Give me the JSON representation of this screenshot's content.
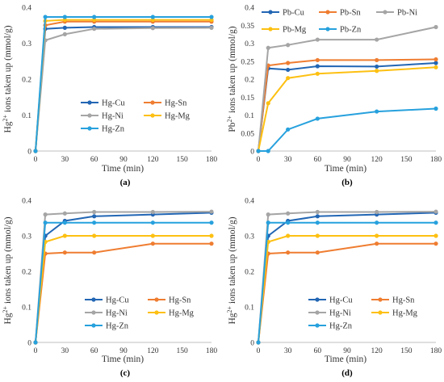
{
  "colors": {
    "Cu": "#2266b4",
    "Sn": "#ef7d31",
    "Ni": "#a5a5a5",
    "Mg": "#fdc012",
    "Zn": "#27a1dd"
  },
  "chart_data": [
    {
      "type": "line",
      "panel_label": "(a)",
      "xlabel": "Time (min)",
      "ylabel": {
        "pre": "Hg",
        "sup": "2+",
        "post": " ions taken up (mmol/g)"
      },
      "x": [
        0,
        10,
        30,
        60,
        120,
        180
      ],
      "x_ticks": [
        0,
        30,
        60,
        90,
        120,
        150,
        180
      ],
      "xlim": [
        0,
        180
      ],
      "ylim": [
        0,
        0.4
      ],
      "y_ticks": [
        "0",
        "0.1",
        "0.2",
        "0.3",
        "0.4"
      ],
      "grid": false,
      "legend": {
        "placement": "center",
        "columns": 2
      },
      "series": [
        {
          "name": "Hg-Cu",
          "key": "Cu",
          "values": [
            0,
            0.34,
            0.343,
            0.345,
            0.345,
            0.345
          ]
        },
        {
          "name": "Hg-Sn",
          "key": "Sn",
          "values": [
            0,
            0.35,
            0.36,
            0.36,
            0.36,
            0.36
          ]
        },
        {
          "name": "Hg-Ni",
          "key": "Ni",
          "values": [
            0,
            0.308,
            0.325,
            0.34,
            0.342,
            0.343
          ]
        },
        {
          "name": "Hg-Mg",
          "key": "Mg",
          "values": [
            0,
            0.362,
            0.365,
            0.365,
            0.365,
            0.365
          ]
        },
        {
          "name": "Hg-Zn",
          "key": "Zn",
          "values": [
            0,
            0.373,
            0.373,
            0.373,
            0.373,
            0.373
          ]
        }
      ]
    },
    {
      "type": "line",
      "panel_label": "(b)",
      "xlabel": "Time (min)",
      "ylabel": {
        "pre": "Pb",
        "sup": "2+",
        "post": " ions taken up  (mmol/g)"
      },
      "x": [
        0,
        10,
        30,
        60,
        120,
        180
      ],
      "x_ticks": [
        0,
        30,
        60,
        90,
        120,
        150,
        180
      ],
      "xlim": [
        0,
        180
      ],
      "ylim": [
        0,
        0.4
      ],
      "y_ticks": [
        "0",
        "0.05",
        "0.1",
        "0.15",
        "0.2",
        "0.25",
        "0.3",
        "0.35",
        "0.4"
      ],
      "grid": false,
      "legend": {
        "placement": "top",
        "columns": 3
      },
      "series": [
        {
          "name": "Pb-Cu",
          "key": "Cu",
          "values": [
            0,
            0.23,
            0.226,
            0.236,
            0.235,
            0.245
          ]
        },
        {
          "name": "Pb-Sn",
          "key": "Sn",
          "values": [
            0,
            0.238,
            0.245,
            0.253,
            0.253,
            0.255
          ]
        },
        {
          "name": "Pb-Ni",
          "key": "Ni",
          "values": [
            0,
            0.287,
            0.295,
            0.31,
            0.31,
            0.345
          ]
        },
        {
          "name": "Pb-Mg",
          "key": "Mg",
          "values": [
            0,
            0.133,
            0.203,
            0.215,
            0.223,
            0.233
          ]
        },
        {
          "name": "Pb-Zn",
          "key": "Zn",
          "values": [
            0,
            0.0,
            0.06,
            0.09,
            0.11,
            0.118
          ]
        }
      ]
    },
    {
      "type": "line",
      "panel_label": "(c)",
      "xlabel": "Time (min)",
      "ylabel": {
        "pre": "Hg",
        "sup": "2+",
        "post": " ions taken up (mmol/g)"
      },
      "x": [
        0,
        10,
        30,
        60,
        120,
        180
      ],
      "x_ticks": [
        0,
        30,
        60,
        90,
        120,
        150,
        180
      ],
      "xlim": [
        0,
        180
      ],
      "ylim": [
        0,
        0.4
      ],
      "y_ticks": [
        "0",
        "0.1",
        "0.2",
        "0.3",
        "0.4"
      ],
      "grid": false,
      "legend": {
        "placement": "bottom",
        "columns": 2
      },
      "series": [
        {
          "name": "Hg-Cu",
          "key": "Cu",
          "values": [
            0,
            0.3,
            0.342,
            0.355,
            0.36,
            0.365
          ]
        },
        {
          "name": "Hg-Sn",
          "key": "Sn",
          "values": [
            0,
            0.25,
            0.253,
            0.253,
            0.278,
            0.278
          ]
        },
        {
          "name": "Hg-Ni",
          "key": "Ni",
          "values": [
            0,
            0.36,
            0.363,
            0.367,
            0.367,
            0.368
          ]
        },
        {
          "name": "Hg-Mg",
          "key": "Mg",
          "values": [
            0,
            0.283,
            0.3,
            0.3,
            0.3,
            0.3
          ]
        },
        {
          "name": "Hg-Zn",
          "key": "Zn",
          "values": [
            0,
            0.337,
            0.337,
            0.337,
            0.337,
            0.337
          ]
        }
      ]
    },
    {
      "type": "line",
      "panel_label": "(d)",
      "xlabel": "Time (min)",
      "ylabel": {
        "pre": "Hg",
        "sup": "2+",
        "post": " ions taken up (mmol/g)"
      },
      "x": [
        0,
        10,
        30,
        60,
        120,
        180
      ],
      "x_ticks": [
        0,
        30,
        60,
        90,
        120,
        150,
        180
      ],
      "xlim": [
        0,
        180
      ],
      "ylim": [
        0,
        0.4
      ],
      "y_ticks": [
        "0",
        "0.1",
        "0.2",
        "0.3",
        "0.4"
      ],
      "grid": false,
      "legend": {
        "placement": "bottom",
        "columns": 2
      },
      "series": [
        {
          "name": "Hg-Cu",
          "key": "Cu",
          "values": [
            0,
            0.3,
            0.342,
            0.355,
            0.36,
            0.365
          ]
        },
        {
          "name": "Hg-Sn",
          "key": "Sn",
          "values": [
            0,
            0.25,
            0.253,
            0.253,
            0.278,
            0.278
          ]
        },
        {
          "name": "Hg-Ni",
          "key": "Ni",
          "values": [
            0,
            0.36,
            0.363,
            0.367,
            0.367,
            0.368
          ]
        },
        {
          "name": "Hg-Mg",
          "key": "Mg",
          "values": [
            0,
            0.283,
            0.3,
            0.3,
            0.3,
            0.3
          ]
        },
        {
          "name": "Hg-Zn",
          "key": "Zn",
          "values": [
            0,
            0.337,
            0.337,
            0.337,
            0.337,
            0.337
          ]
        }
      ]
    }
  ]
}
